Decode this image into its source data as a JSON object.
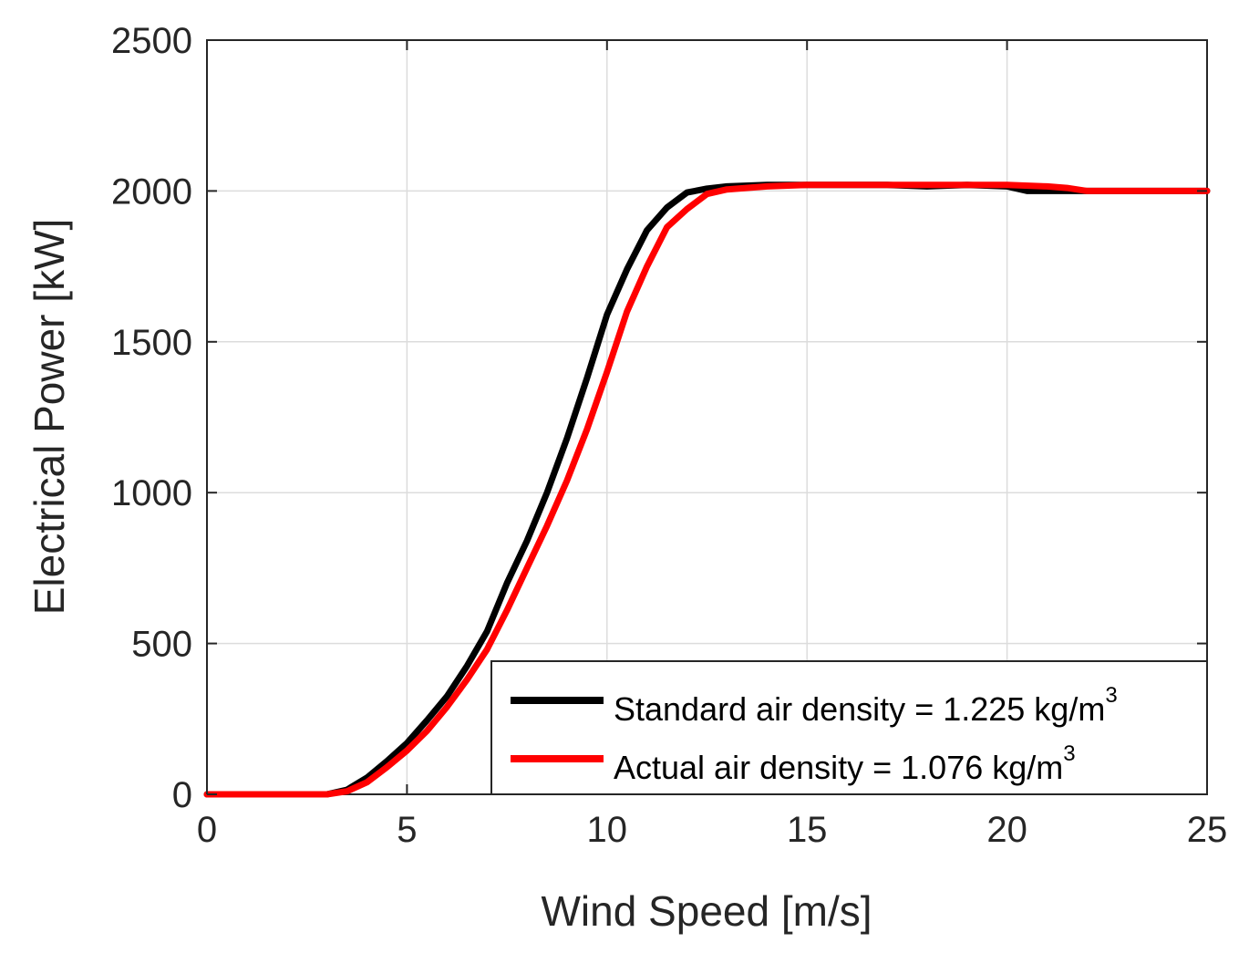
{
  "chart_data": {
    "type": "line",
    "title": "",
    "xlabel": "Wind Speed [m/s]",
    "ylabel": "Electrical Power [kW]",
    "xlim": [
      0,
      25
    ],
    "ylim": [
      0,
      2500
    ],
    "xticks": [
      0,
      5,
      10,
      15,
      20,
      25
    ],
    "yticks": [
      0,
      500,
      1000,
      1500,
      2000,
      2500
    ],
    "x_tick_labels": [
      "0",
      "5",
      "10",
      "15",
      "20",
      "25"
    ],
    "y_tick_labels": [
      "0",
      "500",
      "1000",
      "1500",
      "2000",
      "2500"
    ],
    "grid": true,
    "legend_position": "bottom-right",
    "series": [
      {
        "name": "Standard air density = 1.225 kg/m3",
        "label_main": "Standard air density = 1.225 kg/m",
        "label_sup": "3",
        "color": "#000000",
        "x": [
          0,
          3,
          3.5,
          4,
          4.5,
          5,
          5.5,
          6,
          6.5,
          7,
          7.5,
          8,
          8.5,
          9,
          9.5,
          10,
          10.5,
          11,
          11.5,
          12,
          12.5,
          13,
          14,
          15,
          16,
          17,
          18,
          19,
          20,
          20.5,
          21,
          22,
          23,
          24,
          25
        ],
        "y": [
          0,
          0,
          15,
          55,
          110,
          170,
          245,
          325,
          425,
          540,
          700,
          840,
          1000,
          1180,
          1380,
          1590,
          1740,
          1870,
          1945,
          1995,
          2008,
          2015,
          2020,
          2020,
          2020,
          2020,
          2015,
          2020,
          2015,
          2000,
          2000,
          2000,
          2000,
          2000,
          2000
        ]
      },
      {
        "name": "Actual air density = 1.076 kg/m3",
        "label_main": "Actual air density = 1.076 kg/m",
        "label_sup": "3",
        "color": "#ff0000",
        "x": [
          0,
          3,
          3.5,
          4,
          4.5,
          5,
          5.5,
          6,
          6.5,
          7,
          7.5,
          8,
          8.5,
          9,
          9.5,
          10,
          10.5,
          11,
          11.5,
          12,
          12.5,
          13,
          14,
          15,
          16,
          17,
          18,
          19,
          20,
          21,
          21.5,
          22,
          23,
          24,
          25
        ],
        "y": [
          0,
          0,
          10,
          40,
          90,
          145,
          210,
          290,
          380,
          480,
          610,
          750,
          890,
          1040,
          1210,
          1400,
          1600,
          1750,
          1880,
          1940,
          1990,
          2005,
          2015,
          2020,
          2020,
          2020,
          2020,
          2020,
          2020,
          2015,
          2010,
          2000,
          2000,
          2000,
          2000
        ]
      }
    ]
  }
}
